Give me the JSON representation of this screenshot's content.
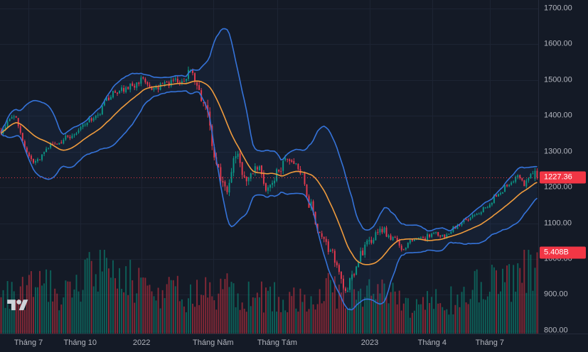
{
  "chart_data": {
    "type": "candlestick",
    "title": "",
    "last_price": 1227.36,
    "last_price_label": "1227.36",
    "volume_label": "5.408B",
    "candle_count": 250,
    "seed": 7,
    "y_axis": {
      "price_at_top": 1723,
      "price_at_bottom": 792,
      "ticks": [
        {
          "value": 800,
          "label": "800.00"
        },
        {
          "value": 900,
          "label": "900.00"
        },
        {
          "value": 1000,
          "label": "1000.00"
        },
        {
          "value": 1100,
          "label": "1100.00"
        },
        {
          "value": 1200,
          "label": "1200.00"
        },
        {
          "value": 1300,
          "label": "1300.00"
        },
        {
          "value": 1400,
          "label": "1400.00"
        },
        {
          "value": 1500,
          "label": "1500.00"
        },
        {
          "value": 1600,
          "label": "1600.00"
        },
        {
          "value": 1700,
          "label": "1700.00"
        }
      ]
    },
    "x_axis": {
      "labels": [
        {
          "text": "Tháng 7",
          "t": 0.053
        },
        {
          "text": "Tháng 10",
          "t": 0.149
        },
        {
          "text": "2022",
          "t": 0.263
        },
        {
          "text": "Tháng Năm",
          "t": 0.396
        },
        {
          "text": "Tháng Tám",
          "t": 0.515
        },
        {
          "text": "2023",
          "t": 0.687
        },
        {
          "text": "Tháng 4",
          "t": 0.803
        },
        {
          "text": "Tháng 7",
          "t": 0.91
        }
      ]
    },
    "price_path": [
      [
        0,
        1360
      ],
      [
        0.02,
        1400
      ],
      [
        0.06,
        1268
      ],
      [
        0.1,
        1320
      ],
      [
        0.13,
        1345
      ],
      [
        0.17,
        1390
      ],
      [
        0.21,
        1460
      ],
      [
        0.24,
        1482
      ],
      [
        0.265,
        1500
      ],
      [
        0.285,
        1468
      ],
      [
        0.31,
        1492
      ],
      [
        0.34,
        1505
      ],
      [
        0.355,
        1520
      ],
      [
        0.38,
        1438
      ],
      [
        0.4,
        1268
      ],
      [
        0.42,
        1185
      ],
      [
        0.44,
        1290
      ],
      [
        0.457,
        1218
      ],
      [
        0.477,
        1255
      ],
      [
        0.497,
        1195
      ],
      [
        0.517,
        1245
      ],
      [
        0.536,
        1282
      ],
      [
        0.556,
        1250
      ],
      [
        0.576,
        1150
      ],
      [
        0.596,
        1070
      ],
      [
        0.616,
        1015
      ],
      [
        0.63,
        975
      ],
      [
        0.642,
        912
      ],
      [
        0.656,
        950
      ],
      [
        0.67,
        1010
      ],
      [
        0.689,
        1050
      ],
      [
        0.71,
        1082
      ],
      [
        0.73,
        1058
      ],
      [
        0.748,
        1032
      ],
      [
        0.768,
        1050
      ],
      [
        0.788,
        1058
      ],
      [
        0.805,
        1070
      ],
      [
        0.828,
        1065
      ],
      [
        0.848,
        1090
      ],
      [
        0.868,
        1112
      ],
      [
        0.888,
        1122
      ],
      [
        0.906,
        1150
      ],
      [
        0.927,
        1180
      ],
      [
        0.947,
        1212
      ],
      [
        0.967,
        1232
      ],
      [
        0.977,
        1208
      ],
      [
        0.99,
        1248
      ],
      [
        1,
        1227.36
      ]
    ],
    "volatility": [
      [
        0,
        0.01
      ],
      [
        0.15,
        0.009
      ],
      [
        0.25,
        0.01
      ],
      [
        0.35,
        0.012
      ],
      [
        0.39,
        0.02
      ],
      [
        0.45,
        0.02
      ],
      [
        0.5,
        0.017
      ],
      [
        0.56,
        0.014
      ],
      [
        0.6,
        0.018
      ],
      [
        0.64,
        0.026
      ],
      [
        0.68,
        0.018
      ],
      [
        0.74,
        0.011
      ],
      [
        0.85,
        0.008
      ],
      [
        0.95,
        0.009
      ],
      [
        1,
        0.011
      ]
    ],
    "volume_profile": [
      [
        0,
        0.5
      ],
      [
        0.07,
        0.62
      ],
      [
        0.13,
        0.58
      ],
      [
        0.185,
        0.88
      ],
      [
        0.23,
        0.75
      ],
      [
        0.3,
        0.62
      ],
      [
        0.36,
        0.55
      ],
      [
        0.4,
        0.62
      ],
      [
        0.46,
        0.52
      ],
      [
        0.52,
        0.5
      ],
      [
        0.58,
        0.45
      ],
      [
        0.61,
        0.58
      ],
      [
        0.655,
        0.55
      ],
      [
        0.7,
        0.55
      ],
      [
        0.72,
        0.65
      ],
      [
        0.76,
        0.38
      ],
      [
        0.8,
        0.42
      ],
      [
        0.85,
        0.5
      ],
      [
        0.89,
        0.62
      ],
      [
        0.93,
        0.75
      ],
      [
        0.97,
        0.82
      ],
      [
        1,
        0.95
      ]
    ],
    "indicators": {
      "bollinger": {
        "window": 20,
        "mult": 2.2
      }
    },
    "colors": {
      "background": "#141a26",
      "grid": "#1d2433",
      "up": "#089981",
      "down": "#f23645",
      "vol_up": "rgba(8,153,129,0.55)",
      "vol_down": "rgba(242,54,69,0.5)",
      "band": "#3573d9",
      "band_fill": "rgba(53,115,217,0.07)",
      "basis": "#ef9b3d",
      "axis_text": "#b2b5be",
      "axis_border": "#252b3b",
      "badge_bg": "#f23645",
      "badge_text": "#ffffff",
      "price_line": "#f23645",
      "logo": "#d8dce3"
    }
  }
}
